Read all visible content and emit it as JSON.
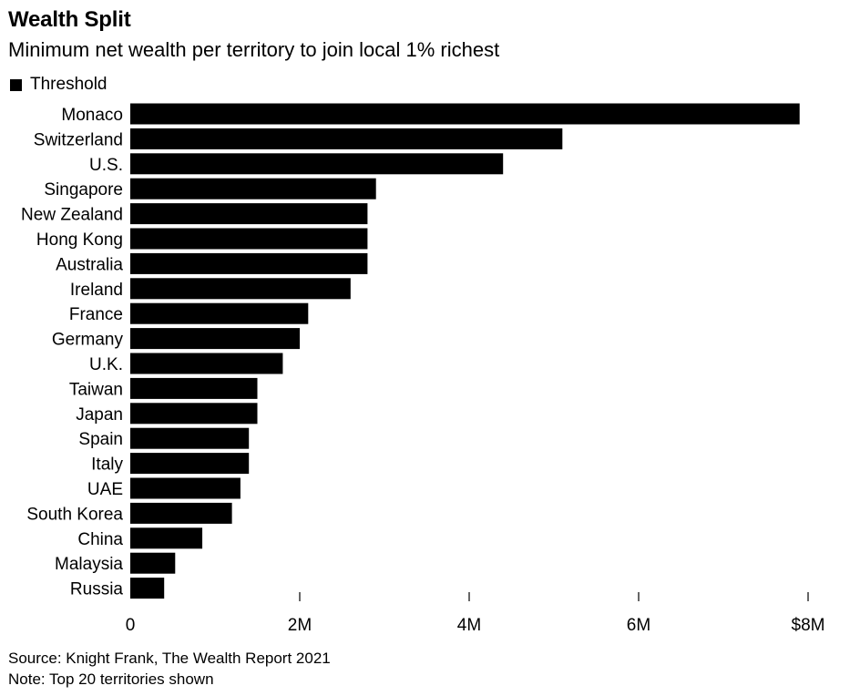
{
  "header": {
    "title": "Wealth Split",
    "subtitle": "Minimum net wealth per territory to join local 1% richest"
  },
  "footer": {
    "source": "Source: Knight Frank, The Wealth Report 2021",
    "note": "Note: Top 20 territories shown"
  },
  "colors": {
    "bar": "#000000",
    "axis": "#000000",
    "background": "#ffffff"
  },
  "chart_data": {
    "type": "bar",
    "orientation": "horizontal",
    "title": "Wealth Split",
    "subtitle": "Minimum net wealth per territory to join local 1% richest",
    "xlabel": "",
    "ylabel": "",
    "legend": {
      "entries": [
        "Threshold"
      ],
      "placement": "top-left"
    },
    "categories": [
      "Monaco",
      "Switzerland",
      "U.S.",
      "Singapore",
      "New Zealand",
      "Hong Kong",
      "Australia",
      "Ireland",
      "France",
      "Germany",
      "U.K.",
      "Taiwan",
      "Japan",
      "Spain",
      "Italy",
      "UAE",
      "South Korea",
      "China",
      "Malaysia",
      "Russia"
    ],
    "series": [
      {
        "name": "Threshold",
        "values": [
          7.9,
          5.1,
          4.4,
          2.9,
          2.8,
          2.8,
          2.8,
          2.6,
          2.1,
          2.0,
          1.8,
          1.5,
          1.5,
          1.4,
          1.4,
          1.3,
          1.2,
          0.85,
          0.53,
          0.4
        ]
      }
    ],
    "xlim": [
      0,
      8
    ],
    "xticks": [
      {
        "value": 0,
        "label": "0"
      },
      {
        "value": 2,
        "label": "2M"
      },
      {
        "value": 4,
        "label": "4M"
      },
      {
        "value": 6,
        "label": "6M"
      },
      {
        "value": 8,
        "label": "$8M"
      }
    ],
    "grid": false
  }
}
